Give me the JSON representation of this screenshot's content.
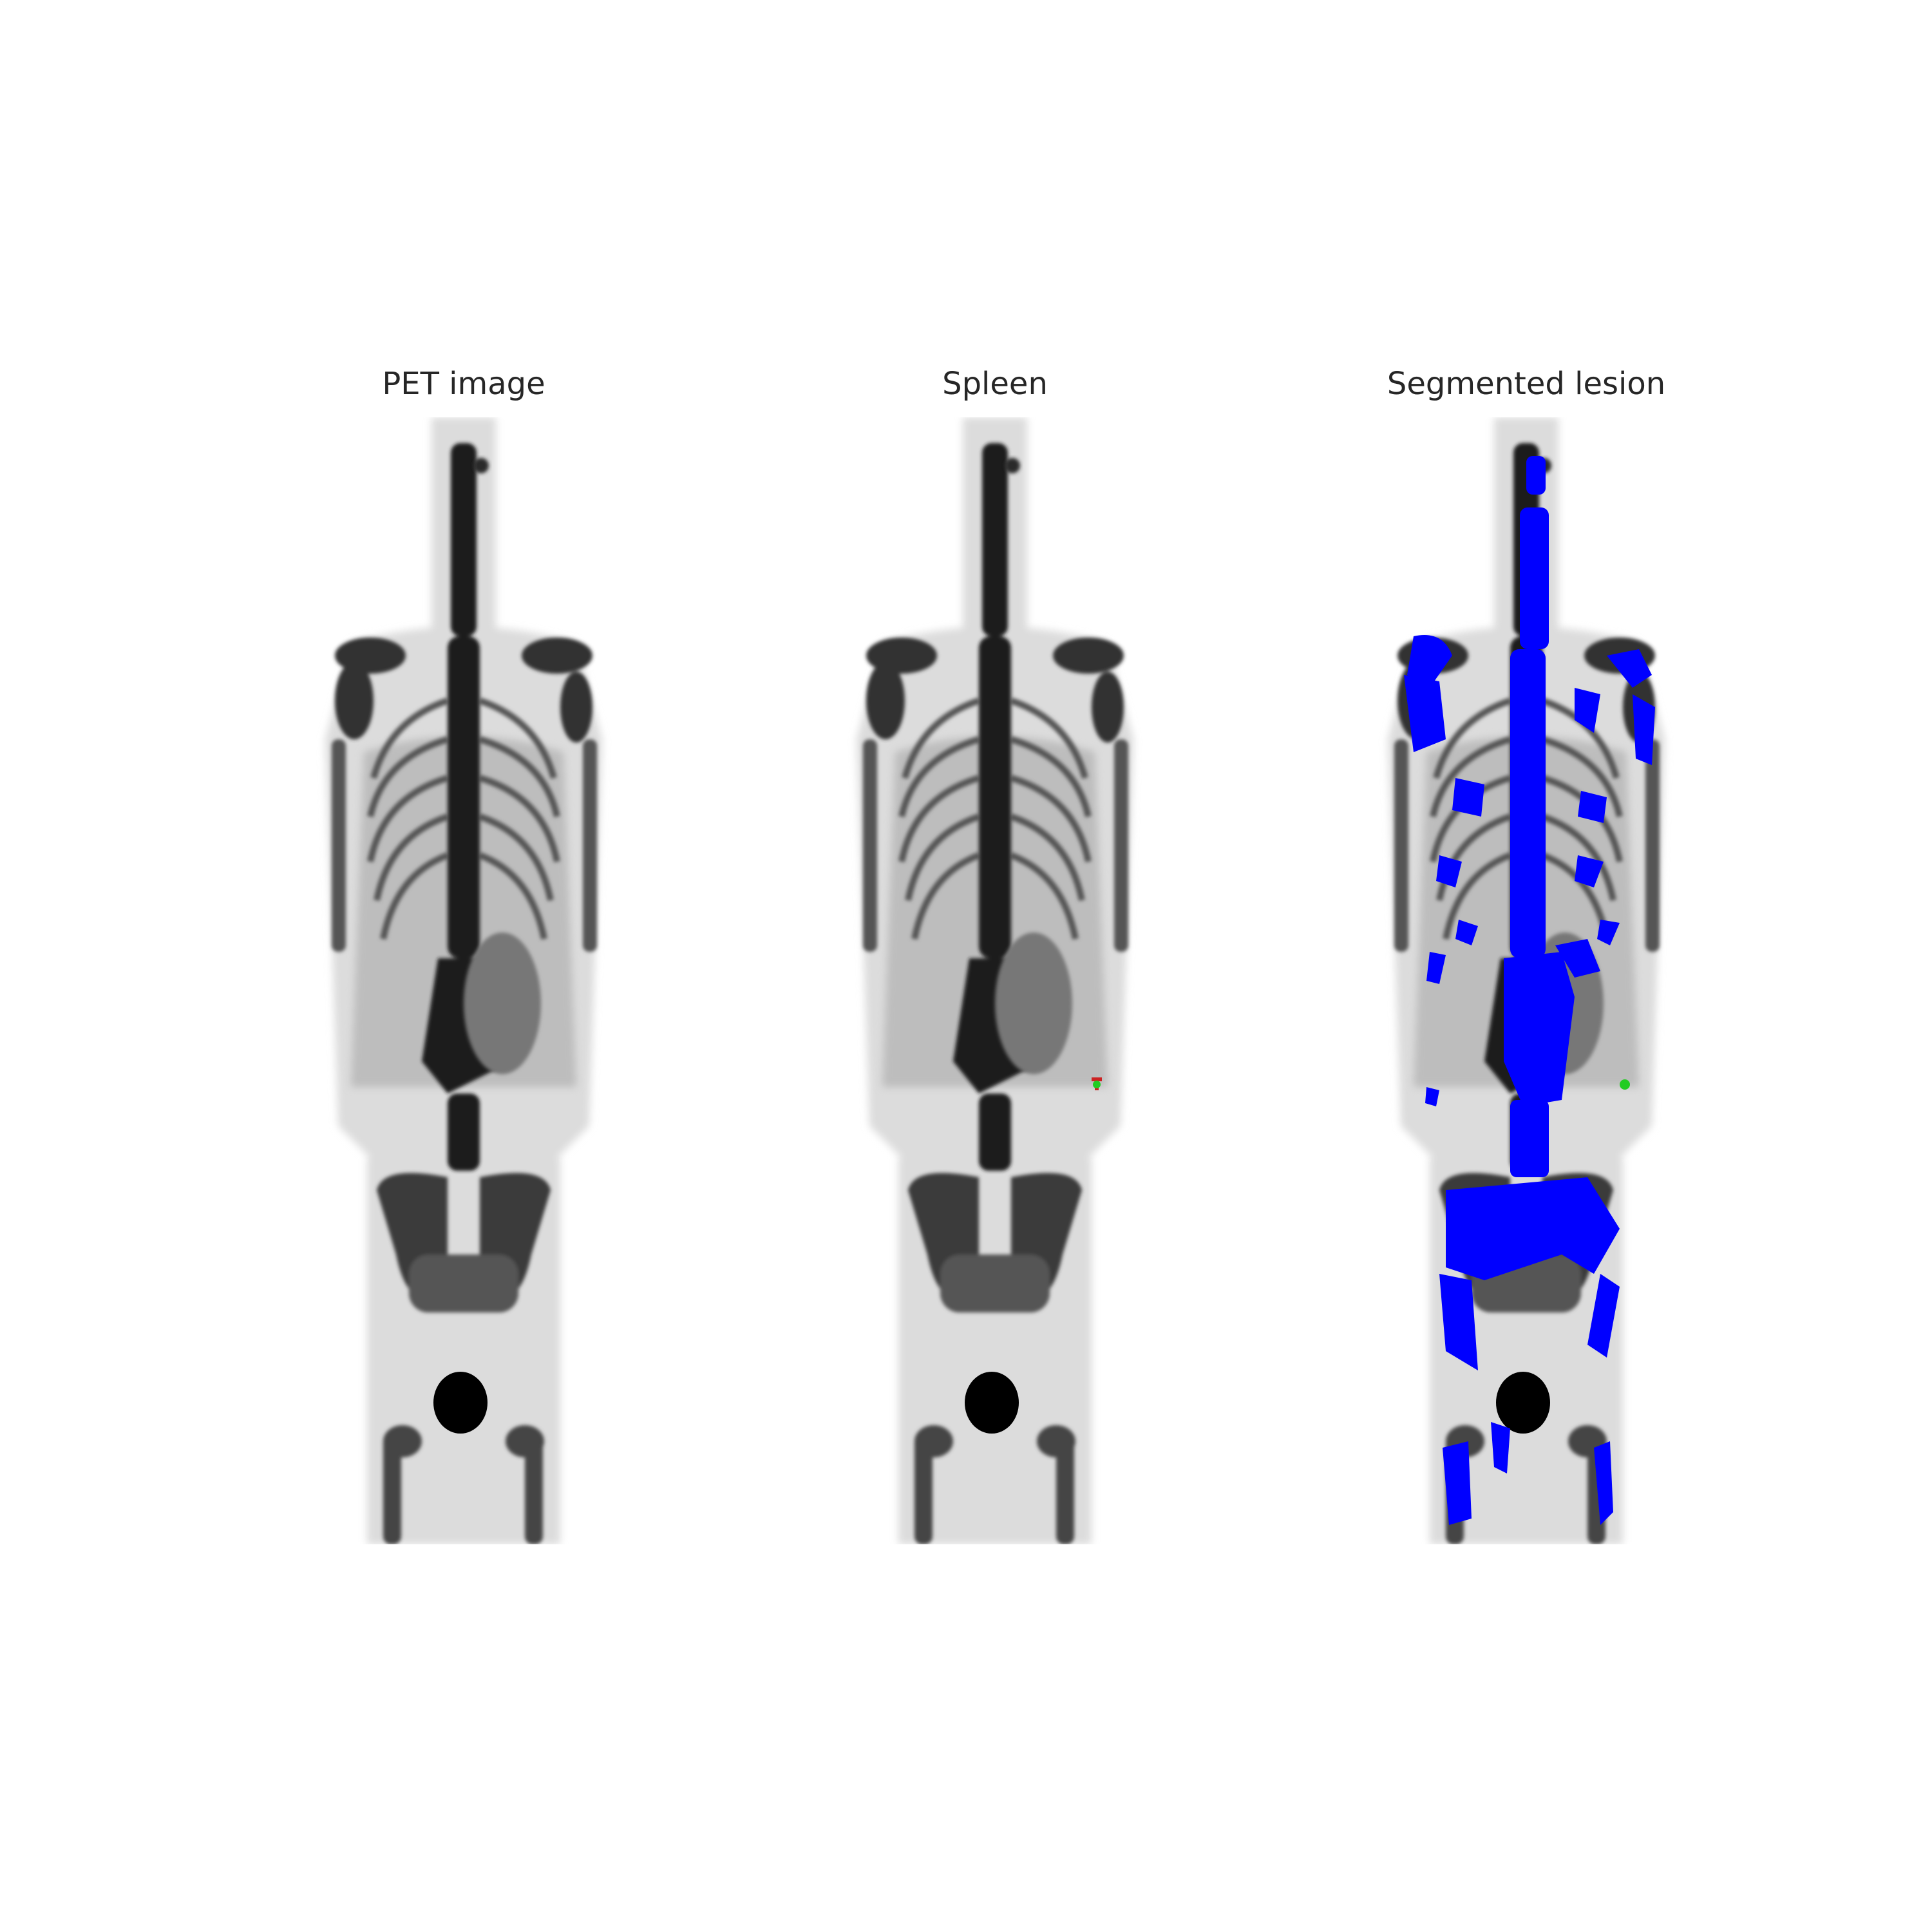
{
  "panels": [
    {
      "title": "PET image",
      "overlay": "none"
    },
    {
      "title": "Spleen",
      "overlay": "spleen-marker"
    },
    {
      "title": "Segmented lesion",
      "overlay": "lesion-mask"
    }
  ],
  "colors": {
    "background": "#ffffff",
    "tracer_uptake": "#000000",
    "lesion_mask": "#0000ff",
    "spleen_marker_green": "#22cc22",
    "spleen_marker_red": "#cc2222"
  }
}
